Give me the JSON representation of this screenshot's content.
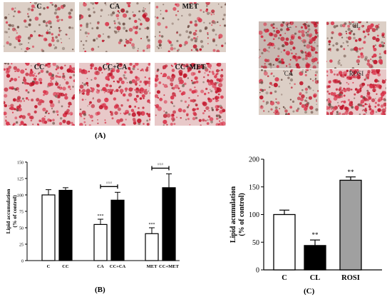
{
  "figure": {
    "panel_A": {
      "caption": "(A)",
      "left_grid": [
        {
          "label": "C",
          "stain": "light"
        },
        {
          "label": "CA",
          "stain": "light"
        },
        {
          "label": "MET",
          "stain": "light"
        },
        {
          "label": "CC",
          "stain": "heavy"
        },
        {
          "label": "CC+CA",
          "stain": "heavy"
        },
        {
          "label": "CC+MET",
          "stain": "heavy"
        }
      ],
      "right_grid": [
        {
          "label": "C",
          "stain": "medium"
        },
        {
          "label": "CL",
          "stain": "light"
        },
        {
          "label": "CA",
          "stain": "light"
        },
        {
          "label": "ROSI",
          "stain": "heavy"
        }
      ]
    },
    "panel_B": {
      "caption": "(B)"
    },
    "panel_C": {
      "caption": "(C)"
    }
  },
  "chart_data": [
    {
      "type": "bar",
      "panel": "B",
      "ylabel": "Lipid accumulation (% of control)",
      "ylabel_lines": [
        "Lipid accumulation",
        "(% of control)"
      ],
      "ylim": [
        0,
        150
      ],
      "yticks": [
        0,
        25,
        50,
        75,
        100,
        125,
        150
      ],
      "categories": [
        "C",
        "CC",
        "CA",
        "CC+CA",
        "MET",
        "CC+MET"
      ],
      "values": [
        100,
        107,
        55,
        92,
        41,
        111
      ],
      "errors": [
        8,
        4,
        8,
        12,
        9,
        21
      ],
      "fill": [
        "white",
        "black",
        "white",
        "black",
        "white",
        "black"
      ],
      "annotations": [
        "",
        "",
        "***",
        "",
        "***",
        ""
      ],
      "comparisons": [
        {
          "from": "CA",
          "to": "CC+CA",
          "label": "###"
        },
        {
          "from": "MET",
          "to": "CC+MET",
          "label": "###"
        }
      ],
      "grid": false
    },
    {
      "type": "bar",
      "panel": "C",
      "ylabel": "Lipid acumulation (% of control)",
      "ylabel_lines": [
        "Lipid acumulation",
        "(% of control)"
      ],
      "ylim": [
        0,
        200
      ],
      "yticks": [
        0,
        50,
        100,
        150,
        200
      ],
      "categories": [
        "C",
        "CL",
        "ROSI"
      ],
      "values": [
        100,
        44,
        162
      ],
      "errors": [
        8,
        10,
        6
      ],
      "colors": [
        "#ffffff",
        "#000000",
        "#a0a0a0"
      ],
      "annotations": [
        "",
        "**",
        "**"
      ],
      "grid": false
    }
  ]
}
